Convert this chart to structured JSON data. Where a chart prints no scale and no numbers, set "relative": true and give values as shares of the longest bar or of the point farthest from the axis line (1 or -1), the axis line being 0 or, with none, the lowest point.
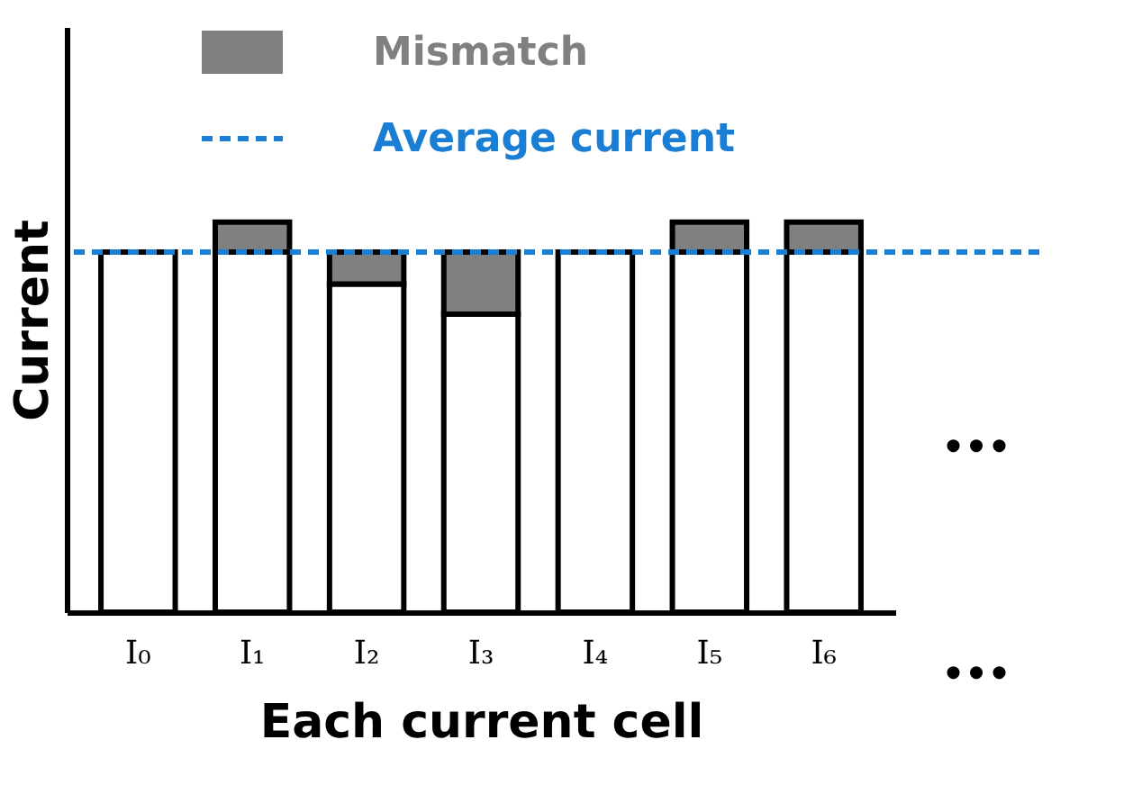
{
  "chart_data": {
    "type": "bar",
    "relative": true,
    "stacked": true,
    "xlabel": "Each current cell",
    "ylabel": "Current",
    "categories": [
      "I₀",
      "I₁",
      "I₂",
      "I₃",
      "I₄",
      "I₅",
      "I₆"
    ],
    "series": [
      {
        "color": "#ffffff",
        "values": [
          0.923,
          0.923,
          0.841,
          0.764,
          0.923,
          0.923,
          0.923
        ]
      },
      {
        "name": "Mismatch",
        "color": "#808080",
        "values": [
          null,
          0.077,
          0.082,
          0.159,
          null,
          0.077,
          0.077
        ]
      }
    ],
    "ref_lines": [
      {
        "axis": "y",
        "value": 0.923,
        "label": "Average current",
        "color": "#1a7fd4",
        "line_style": "dashed"
      }
    ],
    "legend": "top",
    "annotations": [
      "•••",
      "•••"
    ]
  }
}
